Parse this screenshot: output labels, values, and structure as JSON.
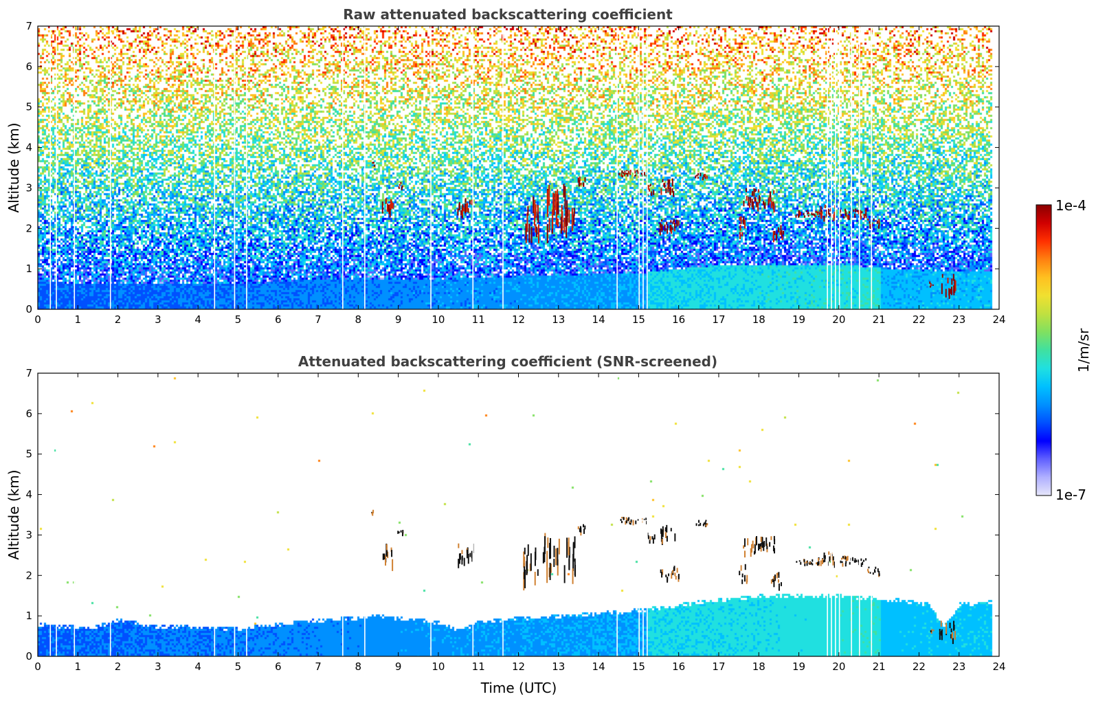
{
  "chart_data": [
    {
      "type": "heatmap",
      "title": "Raw attenuated backscattering coefficient",
      "xlabel": "",
      "ylabel": "Altitude (km)",
      "xlim": [
        0,
        24
      ],
      "ylim": [
        0,
        7
      ],
      "x_ticks": [
        "0",
        "1",
        "2",
        "3",
        "4",
        "5",
        "6",
        "7",
        "8",
        "9",
        "10",
        "11",
        "12",
        "13",
        "14",
        "15",
        "16",
        "17",
        "18",
        "19",
        "20",
        "21",
        "22",
        "23",
        "24"
      ],
      "y_ticks": [
        "0",
        "1",
        "2",
        "3",
        "4",
        "5",
        "6",
        "7"
      ],
      "data_end_time": 23.8,
      "boundary_layer_top_km": [
        [
          0,
          1.0
        ],
        [
          2,
          0.9
        ],
        [
          5,
          0.9
        ],
        [
          7,
          1.1
        ],
        [
          10,
          1.1
        ],
        [
          12,
          1.2
        ],
        [
          15,
          1.3
        ],
        [
          17,
          1.6
        ],
        [
          20,
          1.6
        ],
        [
          22,
          1.4
        ],
        [
          23.8,
          1.4
        ]
      ],
      "gaps_utc": [
        0.3,
        0.45,
        0.9,
        1.8,
        4.4,
        4.9,
        5.2,
        7.6,
        8.15,
        9.8,
        10.85,
        11.6,
        14.45,
        15.0,
        15.1,
        15.2,
        19.7,
        19.8,
        19.9,
        20.0,
        20.3,
        20.5,
        20.8
      ],
      "cloud_layers": [
        {
          "t_start": 8.3,
          "t_end": 8.4,
          "alt_bottom": 3.55,
          "alt_top": 3.7
        },
        {
          "t_start": 8.55,
          "t_end": 8.85,
          "alt_bottom": 2.4,
          "alt_top": 2.9
        },
        {
          "t_start": 8.95,
          "t_end": 9.1,
          "alt_bottom": 3.0,
          "alt_top": 3.15
        },
        {
          "t_start": 10.45,
          "t_end": 10.85,
          "alt_bottom": 2.4,
          "alt_top": 2.85
        },
        {
          "t_start": 12.1,
          "t_end": 12.5,
          "alt_bottom": 2.0,
          "alt_top": 2.8
        },
        {
          "t_start": 12.6,
          "t_end": 13.4,
          "alt_bottom": 2.1,
          "alt_top": 3.1
        },
        {
          "t_start": 13.45,
          "t_end": 13.65,
          "alt_bottom": 3.05,
          "alt_top": 3.3
        },
        {
          "t_start": 14.5,
          "t_end": 15.2,
          "alt_bottom": 3.3,
          "alt_top": 3.45
        },
        {
          "t_start": 15.2,
          "t_end": 15.4,
          "alt_bottom": 2.85,
          "alt_top": 3.1
        },
        {
          "t_start": 15.5,
          "t_end": 15.9,
          "alt_bottom": 2.9,
          "alt_top": 3.25
        },
        {
          "t_start": 16.4,
          "t_end": 16.7,
          "alt_bottom": 3.25,
          "alt_top": 3.4
        },
        {
          "t_start": 15.5,
          "t_end": 16.0,
          "alt_bottom": 1.95,
          "alt_top": 2.25
        },
        {
          "t_start": 17.5,
          "t_end": 17.7,
          "alt_bottom": 1.9,
          "alt_top": 2.3
        },
        {
          "t_start": 17.6,
          "t_end": 18.4,
          "alt_bottom": 2.6,
          "alt_top": 3.0
        },
        {
          "t_start": 18.3,
          "t_end": 18.6,
          "alt_bottom": 1.8,
          "alt_top": 2.1
        },
        {
          "t_start": 18.9,
          "t_end": 19.6,
          "alt_bottom": 2.3,
          "alt_top": 2.45
        },
        {
          "t_start": 19.5,
          "t_end": 19.9,
          "alt_bottom": 2.3,
          "alt_top": 2.6
        },
        {
          "t_start": 20.0,
          "t_end": 20.7,
          "alt_bottom": 2.3,
          "alt_top": 2.5
        },
        {
          "t_start": 20.7,
          "t_end": 21.0,
          "alt_bottom": 2.05,
          "alt_top": 2.25
        },
        {
          "t_start": 22.25,
          "t_end": 22.35,
          "alt_bottom": 0.55,
          "alt_top": 0.7
        },
        {
          "t_start": 22.5,
          "t_end": 22.9,
          "alt_bottom": 0.45,
          "alt_top": 0.9
        }
      ]
    },
    {
      "type": "heatmap",
      "title": "Attenuated backscattering coefficient (SNR-screened)",
      "xlabel": "Time (UTC)",
      "ylabel": "Altitude (km)",
      "xlim": [
        0,
        24
      ],
      "ylim": [
        0,
        7
      ],
      "x_ticks": [
        "0",
        "1",
        "2",
        "3",
        "4",
        "5",
        "6",
        "7",
        "8",
        "9",
        "10",
        "11",
        "12",
        "13",
        "14",
        "15",
        "16",
        "17",
        "18",
        "19",
        "20",
        "21",
        "22",
        "23",
        "24"
      ],
      "y_ticks": [
        "0",
        "1",
        "2",
        "3",
        "4",
        "5",
        "6",
        "7"
      ],
      "data_end_time": 23.8,
      "boundary_layer_top_km": [
        [
          0,
          0.85
        ],
        [
          1.3,
          0.75
        ],
        [
          2,
          0.95
        ],
        [
          3,
          0.8
        ],
        [
          5,
          0.75
        ],
        [
          6,
          0.85
        ],
        [
          7,
          0.95
        ],
        [
          8.5,
          1.05
        ],
        [
          10,
          0.9
        ],
        [
          10.5,
          0.7
        ],
        [
          11,
          0.9
        ],
        [
          12,
          1.0
        ],
        [
          13,
          1.05
        ],
        [
          15,
          1.2
        ],
        [
          16.5,
          1.4
        ],
        [
          18,
          1.55
        ],
        [
          20,
          1.55
        ],
        [
          21.5,
          1.45
        ],
        [
          22.2,
          1.35
        ],
        [
          22.6,
          0.8
        ],
        [
          23,
          1.35
        ],
        [
          23.8,
          1.4
        ]
      ]
    }
  ],
  "colorbar": {
    "label": "1/m/sr",
    "max_label": "1e-4",
    "min_label": "1e-7",
    "colors": [
      "#e6e6fa",
      "#b0b0ff",
      "#6060ff",
      "#0000ff",
      "#0050ff",
      "#0090ff",
      "#00c0ff",
      "#20e0e0",
      "#40e0a0",
      "#80e060",
      "#c0e040",
      "#f0e030",
      "#ffc020",
      "#ff8010",
      "#ff3000",
      "#d00000",
      "#8b0000"
    ]
  }
}
